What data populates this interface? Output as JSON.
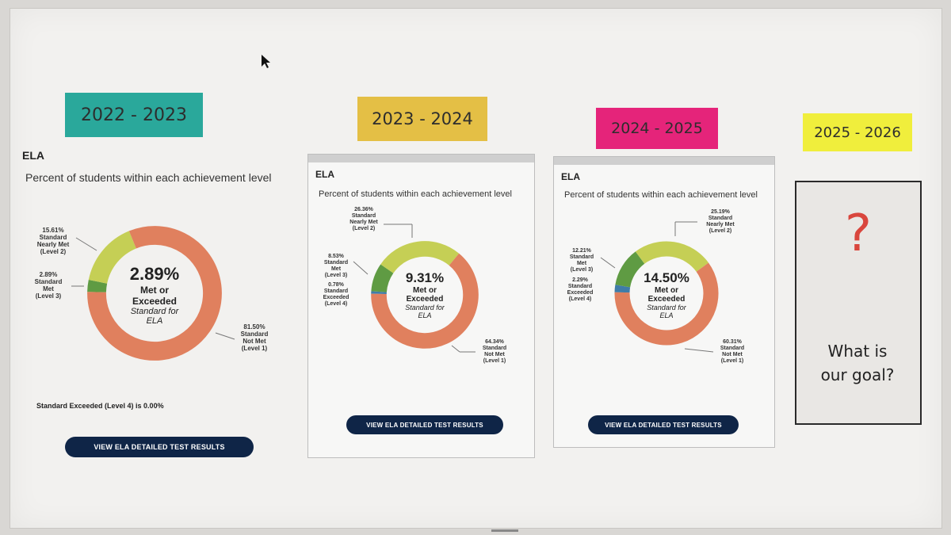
{
  "years": [
    {
      "label": "2022 - 2023",
      "color": "#2aa89b"
    },
    {
      "label": "2023 - 2024",
      "color": "#e4bf45"
    },
    {
      "label": "2024 - 2025",
      "color": "#e5247a"
    },
    {
      "label": "2025 - 2026",
      "color": "#f0ee3c"
    }
  ],
  "panels": [
    {
      "title": "ELA",
      "subtitle": "Percent of students within each achievement level",
      "center_pct": "2.89%",
      "center_met": "Met or Exceeded",
      "center_std": "Standard for ELA",
      "callouts": {
        "nearly": "15.61%\nStandard\nNearly Met\n(Level 2)",
        "met": "2.89%\nStandard\nMet\n(Level 3)",
        "notmet": "81.50%\nStandard\nNot Met\n(Level 1)"
      },
      "note": "Standard Exceeded (Level 4) is 0.00%",
      "button": "VIEW ELA DETAILED TEST RESULTS"
    },
    {
      "title": "ELA",
      "subtitle": "Percent of students within each achievement level",
      "center_pct": "9.31%",
      "center_met": "Met or Exceeded",
      "center_std": "Standard for ELA",
      "callouts": {
        "nearly": "26.36%\nStandard\nNearly Met\n(Level 2)",
        "met": "8.53%\nStandard\nMet\n(Level 3)",
        "exceeded": "0.78%\nStandard\nExceeded\n(Level 4)",
        "notmet": "64.34%\nStandard\nNot Met\n(Level 1)"
      },
      "button": "VIEW ELA DETAILED TEST RESULTS"
    },
    {
      "title": "ELA",
      "subtitle": "Percent of students within each achievement level",
      "center_pct": "14.50%",
      "center_met": "Met or Exceeded",
      "center_std": "Standard for ELA",
      "callouts": {
        "nearly": "25.19%\nStandard\nNearly Met\n(Level 2)",
        "met": "12.21%\nStandard\nMet\n(Level 3)",
        "exceeded": "2.29%\nStandard\nExceeded\n(Level 4)",
        "notmet": "60.31%\nStandard\nNot Met\n(Level 1)"
      },
      "button": "VIEW ELA DETAILED TEST RESULTS"
    }
  ],
  "goal": {
    "symbol": "?",
    "text": "What is\nour goal?"
  },
  "chart_data": [
    {
      "type": "pie",
      "title": "",
      "categories": [
        "Standard Not Met (Level 1)",
        "Standard Nearly Met (Level 2)",
        "Standard Met (Level 3)",
        "Standard Exceeded (Level 4)"
      ],
      "values": [
        81.5,
        15.61,
        2.89,
        0.0
      ],
      "colors": [
        "#e0805e",
        "#c5cf55",
        "#5f9b43",
        "#3f7ca8"
      ]
    },
    {
      "type": "pie",
      "title": "",
      "categories": [
        "Standard Not Met (Level 1)",
        "Standard Nearly Met (Level 2)",
        "Standard Met (Level 3)",
        "Standard Exceeded (Level 4)"
      ],
      "values": [
        64.34,
        26.36,
        8.53,
        0.78
      ],
      "colors": [
        "#e0805e",
        "#c5cf55",
        "#5f9b43",
        "#3f7ca8"
      ]
    },
    {
      "type": "pie",
      "title": "",
      "categories": [
        "Standard Not Met (Level 1)",
        "Standard Nearly Met (Level 2)",
        "Standard Met (Level 3)",
        "Standard Exceeded (Level 4)"
      ],
      "values": [
        60.31,
        25.19,
        12.21,
        2.29
      ],
      "colors": [
        "#e0805e",
        "#c5cf55",
        "#5f9b43",
        "#3f7ca8"
      ]
    }
  ]
}
